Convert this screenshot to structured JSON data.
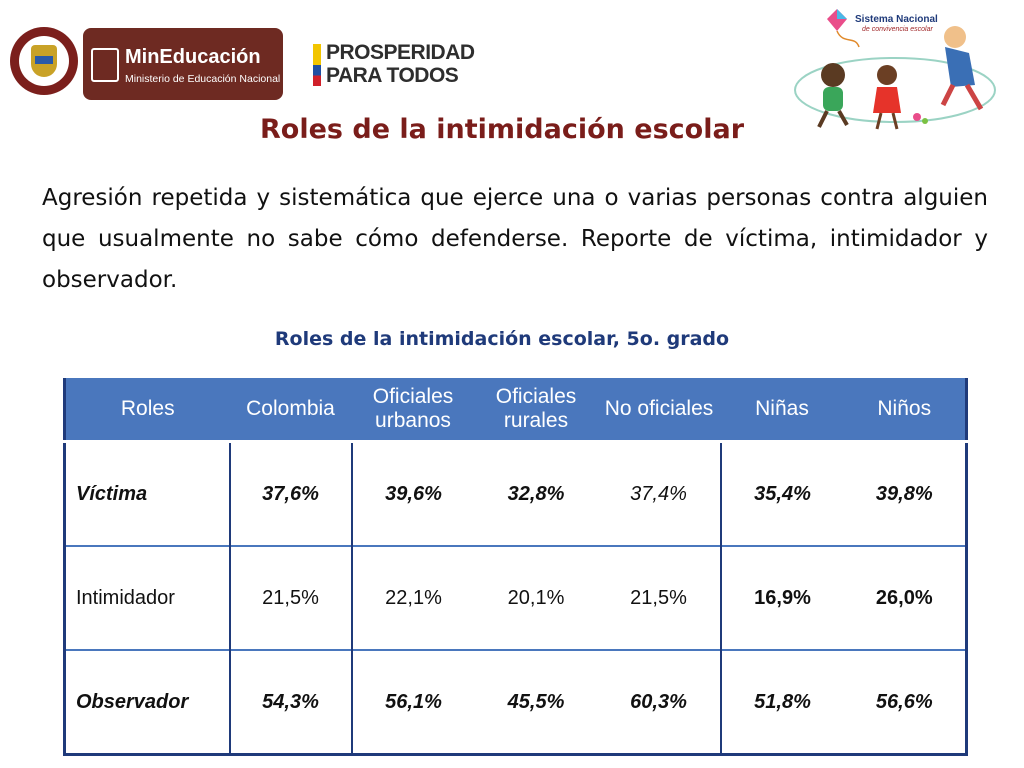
{
  "header": {
    "seal_icon": "colombia-coat-of-arms",
    "mineducacion": {
      "title": "MinEducación",
      "subtitle": "Ministerio de Educación Nacional"
    },
    "prosperidad": {
      "line1": "PROSPERIDAD",
      "line2": "PARA TODOS"
    },
    "sistema": {
      "label": "Sistema Nacional",
      "sub": "de convivencia escolar"
    }
  },
  "title": "Roles de la intimidación escolar",
  "description": "Agresión repetida y sistemática que ejerce una o varias personas contra alguien que usualmente no sabe cómo defenderse. Reporte de víctima, intimidador y observador.",
  "table": {
    "title": "Roles de la intimidación escolar, 5o. grado",
    "headers": [
      "Roles",
      "Colombia",
      "Oficiales urbanos",
      "Oficiales rurales",
      "No oficiales",
      "Niñas",
      "Niños"
    ],
    "rows": [
      {
        "label": "Víctima",
        "values": [
          "37,6%",
          "39,6%",
          "32,8%",
          "37,4%",
          "35,4%",
          "39,8%"
        ]
      },
      {
        "label": "Intimidador",
        "values": [
          "21,5%",
          "22,1%",
          "20,1%",
          "21,5%",
          "16,9%",
          "26,0%"
        ]
      },
      {
        "label": "Observador",
        "values": [
          "54,3%",
          "56,1%",
          "45,5%",
          "60,3%",
          "51,8%",
          "56,6%"
        ]
      }
    ]
  },
  "colors": {
    "title": "#7a1d1a",
    "table_header": "#4a77bd",
    "table_title": "#1f3a7a",
    "brand": "#6e2a22"
  }
}
